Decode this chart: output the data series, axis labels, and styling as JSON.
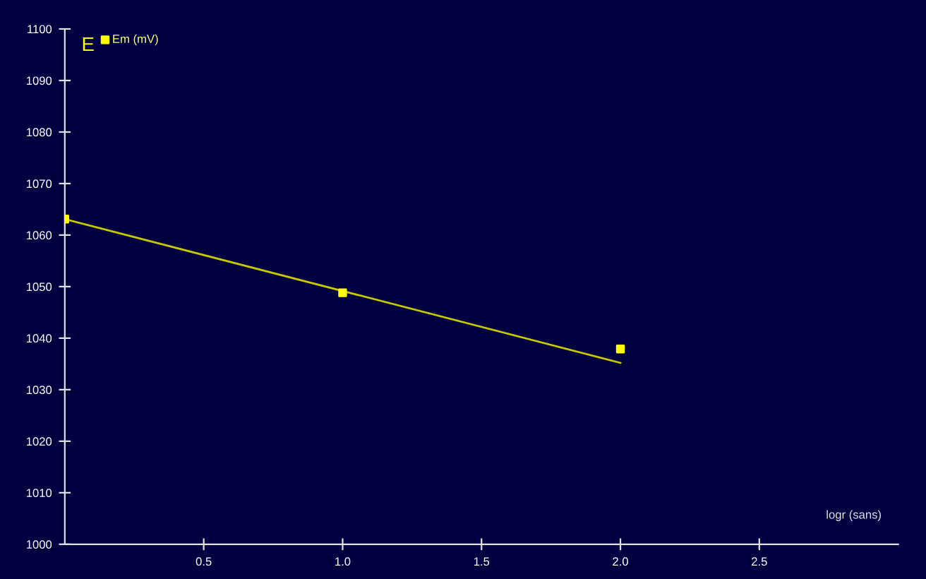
{
  "chart_data": {
    "type": "scatter",
    "ylabel": "E",
    "xlabel": "logr (sans)",
    "xlim": [
      0,
      3
    ],
    "ylim": [
      1000,
      1100
    ],
    "xticks": [
      0.5,
      {
        "value": 1,
        "label": "1.0"
      },
      1.5,
      {
        "value": 2,
        "label": "2.0"
      },
      2.5
    ],
    "yticks": [
      1000,
      1010,
      1020,
      1030,
      1040,
      1050,
      1060,
      1070,
      1080,
      1090,
      1100
    ],
    "grid": false,
    "legend": "top left",
    "marker": "square",
    "series": [
      {
        "name": "Em (mV)",
        "color": "#ffff00",
        "x": [
          0,
          1.0,
          2.0
        ],
        "values": [
          1063.1,
          1048.8,
          1037.9
        ]
      },
      {
        "type": "line",
        "color": "#c8c800",
        "x": [
          0,
          2.0
        ],
        "values": [
          1063.1,
          1035.2
        ],
        "marker": "none"
      }
    ]
  }
}
